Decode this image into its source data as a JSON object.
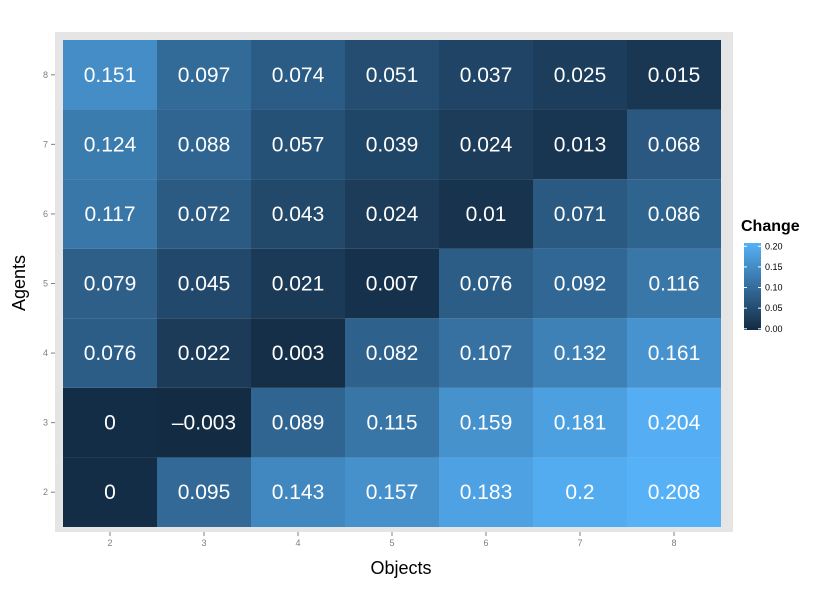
{
  "chart_data": {
    "type": "heatmap",
    "x": [
      2,
      3,
      4,
      5,
      6,
      7,
      8
    ],
    "y": [
      2,
      3,
      4,
      5,
      6,
      7,
      8
    ],
    "x_tick_labels": [
      "2",
      "3",
      "4",
      "5",
      "6",
      "7",
      "8"
    ],
    "y_tick_labels": [
      "2",
      "3",
      "4",
      "5",
      "6",
      "7",
      "8"
    ],
    "xlabel": "Objects",
    "ylabel": "Agents",
    "values": [
      [
        0,
        0.095,
        0.143,
        0.157,
        0.183,
        0.2,
        0.208
      ],
      [
        0,
        -0.003,
        0.089,
        0.115,
        0.159,
        0.181,
        0.204
      ],
      [
        0.076,
        0.022,
        0.003,
        0.082,
        0.107,
        0.132,
        0.161
      ],
      [
        0.079,
        0.045,
        0.021,
        0.007,
        0.076,
        0.092,
        0.116
      ],
      [
        0.117,
        0.072,
        0.043,
        0.024,
        0.01,
        0.071,
        0.086
      ],
      [
        0.124,
        0.088,
        0.057,
        0.039,
        0.024,
        0.013,
        0.068
      ],
      [
        0.151,
        0.097,
        0.074,
        0.051,
        0.037,
        0.025,
        0.015
      ]
    ],
    "labels": [
      [
        "0",
        "0.095",
        "0.143",
        "0.157",
        "0.183",
        "0.2",
        "0.208"
      ],
      [
        "0",
        "–0.003",
        "0.089",
        "0.115",
        "0.159",
        "0.181",
        "0.204"
      ],
      [
        "0.076",
        "0.022",
        "0.003",
        "0.082",
        "0.107",
        "0.132",
        "0.161"
      ],
      [
        "0.079",
        "0.045",
        "0.021",
        "0.007",
        "0.076",
        "0.092",
        "0.116"
      ],
      [
        "0.117",
        "0.072",
        "0.043",
        "0.024",
        "0.01",
        "0.071",
        "0.086"
      ],
      [
        "0.124",
        "0.088",
        "0.057",
        "0.039",
        "0.024",
        "0.013",
        "0.068"
      ],
      [
        "0.151",
        "0.097",
        "0.074",
        "0.051",
        "0.037",
        "0.025",
        "0.015"
      ]
    ],
    "legend": {
      "title": "Change",
      "ticks": [
        0.2,
        0.15,
        0.1,
        0.05,
        0
      ],
      "tick_labels": [
        "0.20",
        "0.15",
        "0.10",
        "0.05",
        "0.00"
      ],
      "placement": "right",
      "range": [
        -0.003,
        0.208
      ]
    },
    "colors": {
      "low": "#132B43",
      "high": "#56B1F7",
      "panel_background": "#E5E5E5"
    },
    "grid": false
  }
}
